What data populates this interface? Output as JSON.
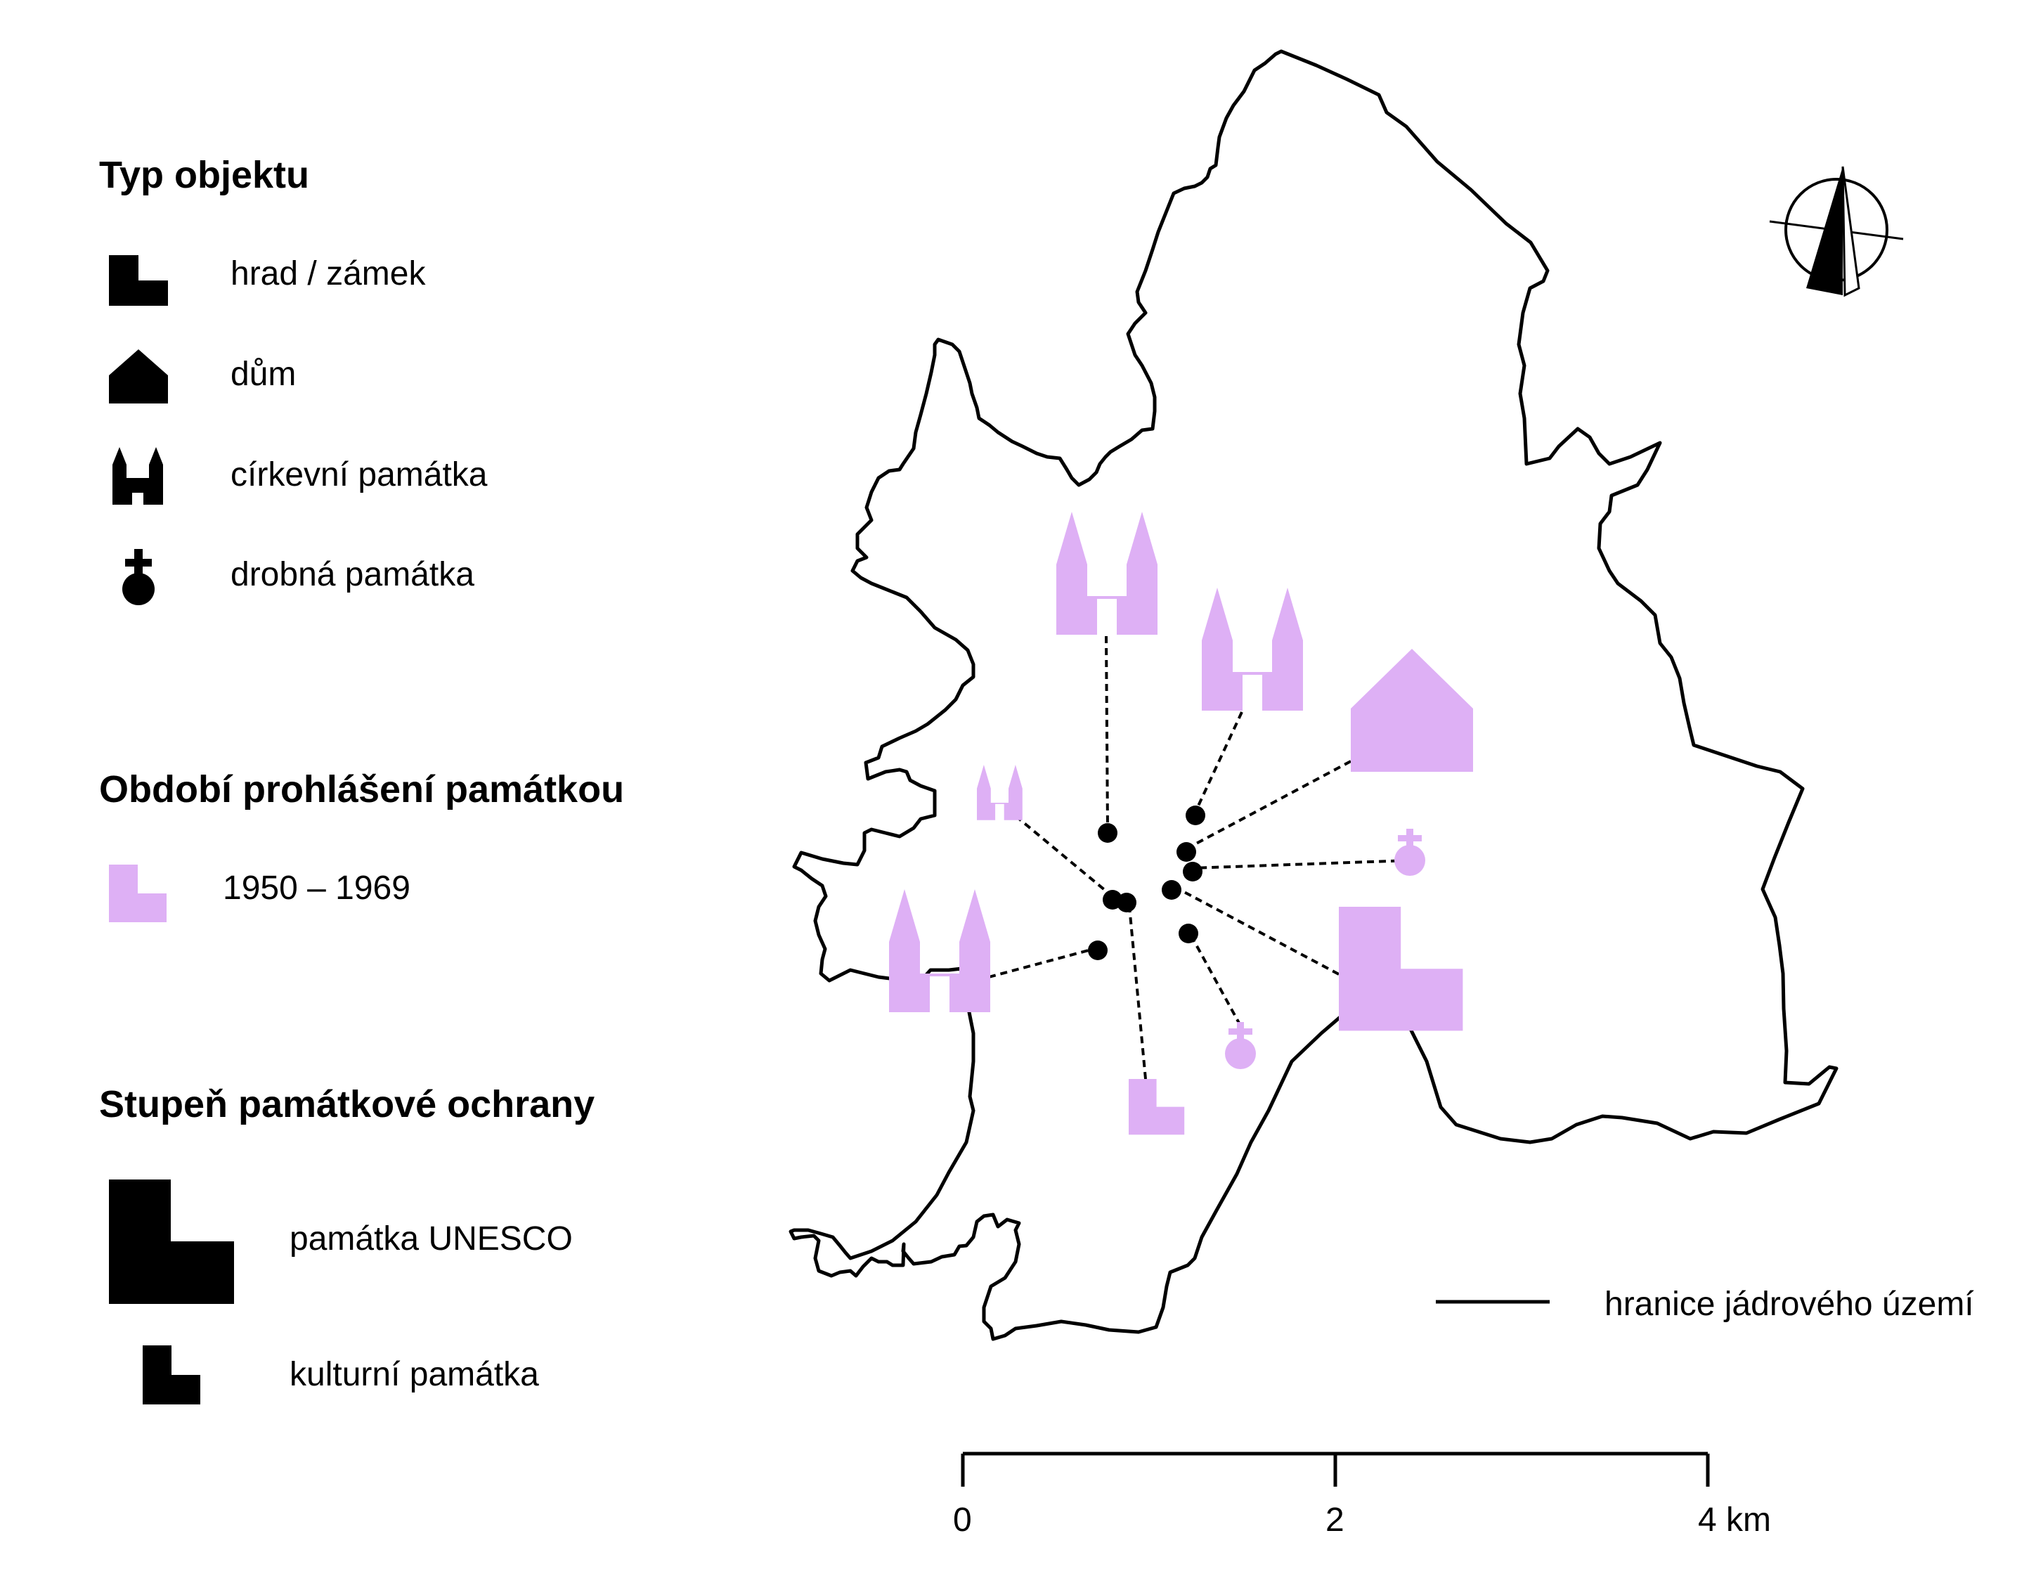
{
  "legend": {
    "type_heading": "Typ objektu",
    "types": [
      {
        "icon": "castle-icon",
        "label": "hrad / zámek"
      },
      {
        "icon": "house-icon",
        "label": "dům"
      },
      {
        "icon": "church-icon",
        "label": "církevní památka"
      },
      {
        "icon": "small-monument-icon",
        "label": "drobná památka"
      }
    ],
    "period_heading": "Období prohlášení památkou",
    "period_label": "1950 – 1969",
    "protection_heading": "Stupeň památkové ochrany",
    "protection": [
      {
        "icon": "unesco-icon",
        "label": "památka UNESCO"
      },
      {
        "icon": "cultural-monument-icon",
        "label": "kulturní památka"
      }
    ],
    "boundary_label": "hranice jádrového území"
  },
  "scale_bar": {
    "labels": [
      "0",
      "2",
      "4 km"
    ]
  },
  "north_arrow": {
    "icon": "north-arrow-icon"
  },
  "colors": {
    "period_1950_1969": "#deb0f5",
    "ink": "#000000",
    "background": "#ffffff"
  },
  "monuments": [
    {
      "type": "church",
      "grade": "kulturní památka"
    },
    {
      "type": "church",
      "grade": "kulturní památka"
    },
    {
      "type": "house",
      "grade": "kulturní památka"
    },
    {
      "type": "small",
      "grade": "kulturní památka"
    },
    {
      "type": "castle",
      "grade": "památka UNESCO"
    },
    {
      "type": "small",
      "grade": "kulturní památka"
    },
    {
      "type": "castle",
      "grade": "kulturní památka"
    },
    {
      "type": "church",
      "grade": "kulturní památka"
    },
    {
      "type": "church",
      "grade": "kulturní památka"
    }
  ]
}
